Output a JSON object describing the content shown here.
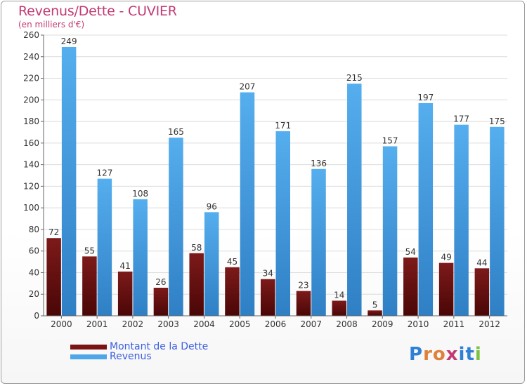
{
  "title": "Revenus/Dette - CUVIER",
  "subtitle": "(en milliers d'€)",
  "legend": {
    "debt_label": "Montant de la Dette",
    "revenue_label": "Revenus"
  },
  "logo": {
    "text": "Proxiti"
  },
  "colors": {
    "debt": "#7a1414",
    "revenue": "#4da6e8",
    "title": "#c23a73",
    "legend_text": "#3b5fe0"
  },
  "chart_data": {
    "type": "bar",
    "categories": [
      "2000",
      "2001",
      "2002",
      "2003",
      "2004",
      "2005",
      "2006",
      "2007",
      "2008",
      "2009",
      "2010",
      "2011",
      "2012"
    ],
    "series": [
      {
        "name": "Montant de la Dette",
        "values": [
          72,
          55,
          41,
          26,
          58,
          45,
          34,
          23,
          14,
          5,
          54,
          49,
          44
        ]
      },
      {
        "name": "Revenus",
        "values": [
          249,
          127,
          108,
          165,
          96,
          207,
          171,
          136,
          215,
          157,
          197,
          177,
          175
        ]
      }
    ],
    "ylim": [
      0,
      260
    ],
    "yticks": [
      0,
      20,
      40,
      60,
      80,
      100,
      120,
      140,
      160,
      180,
      200,
      220,
      240,
      260
    ],
    "grid": true
  }
}
